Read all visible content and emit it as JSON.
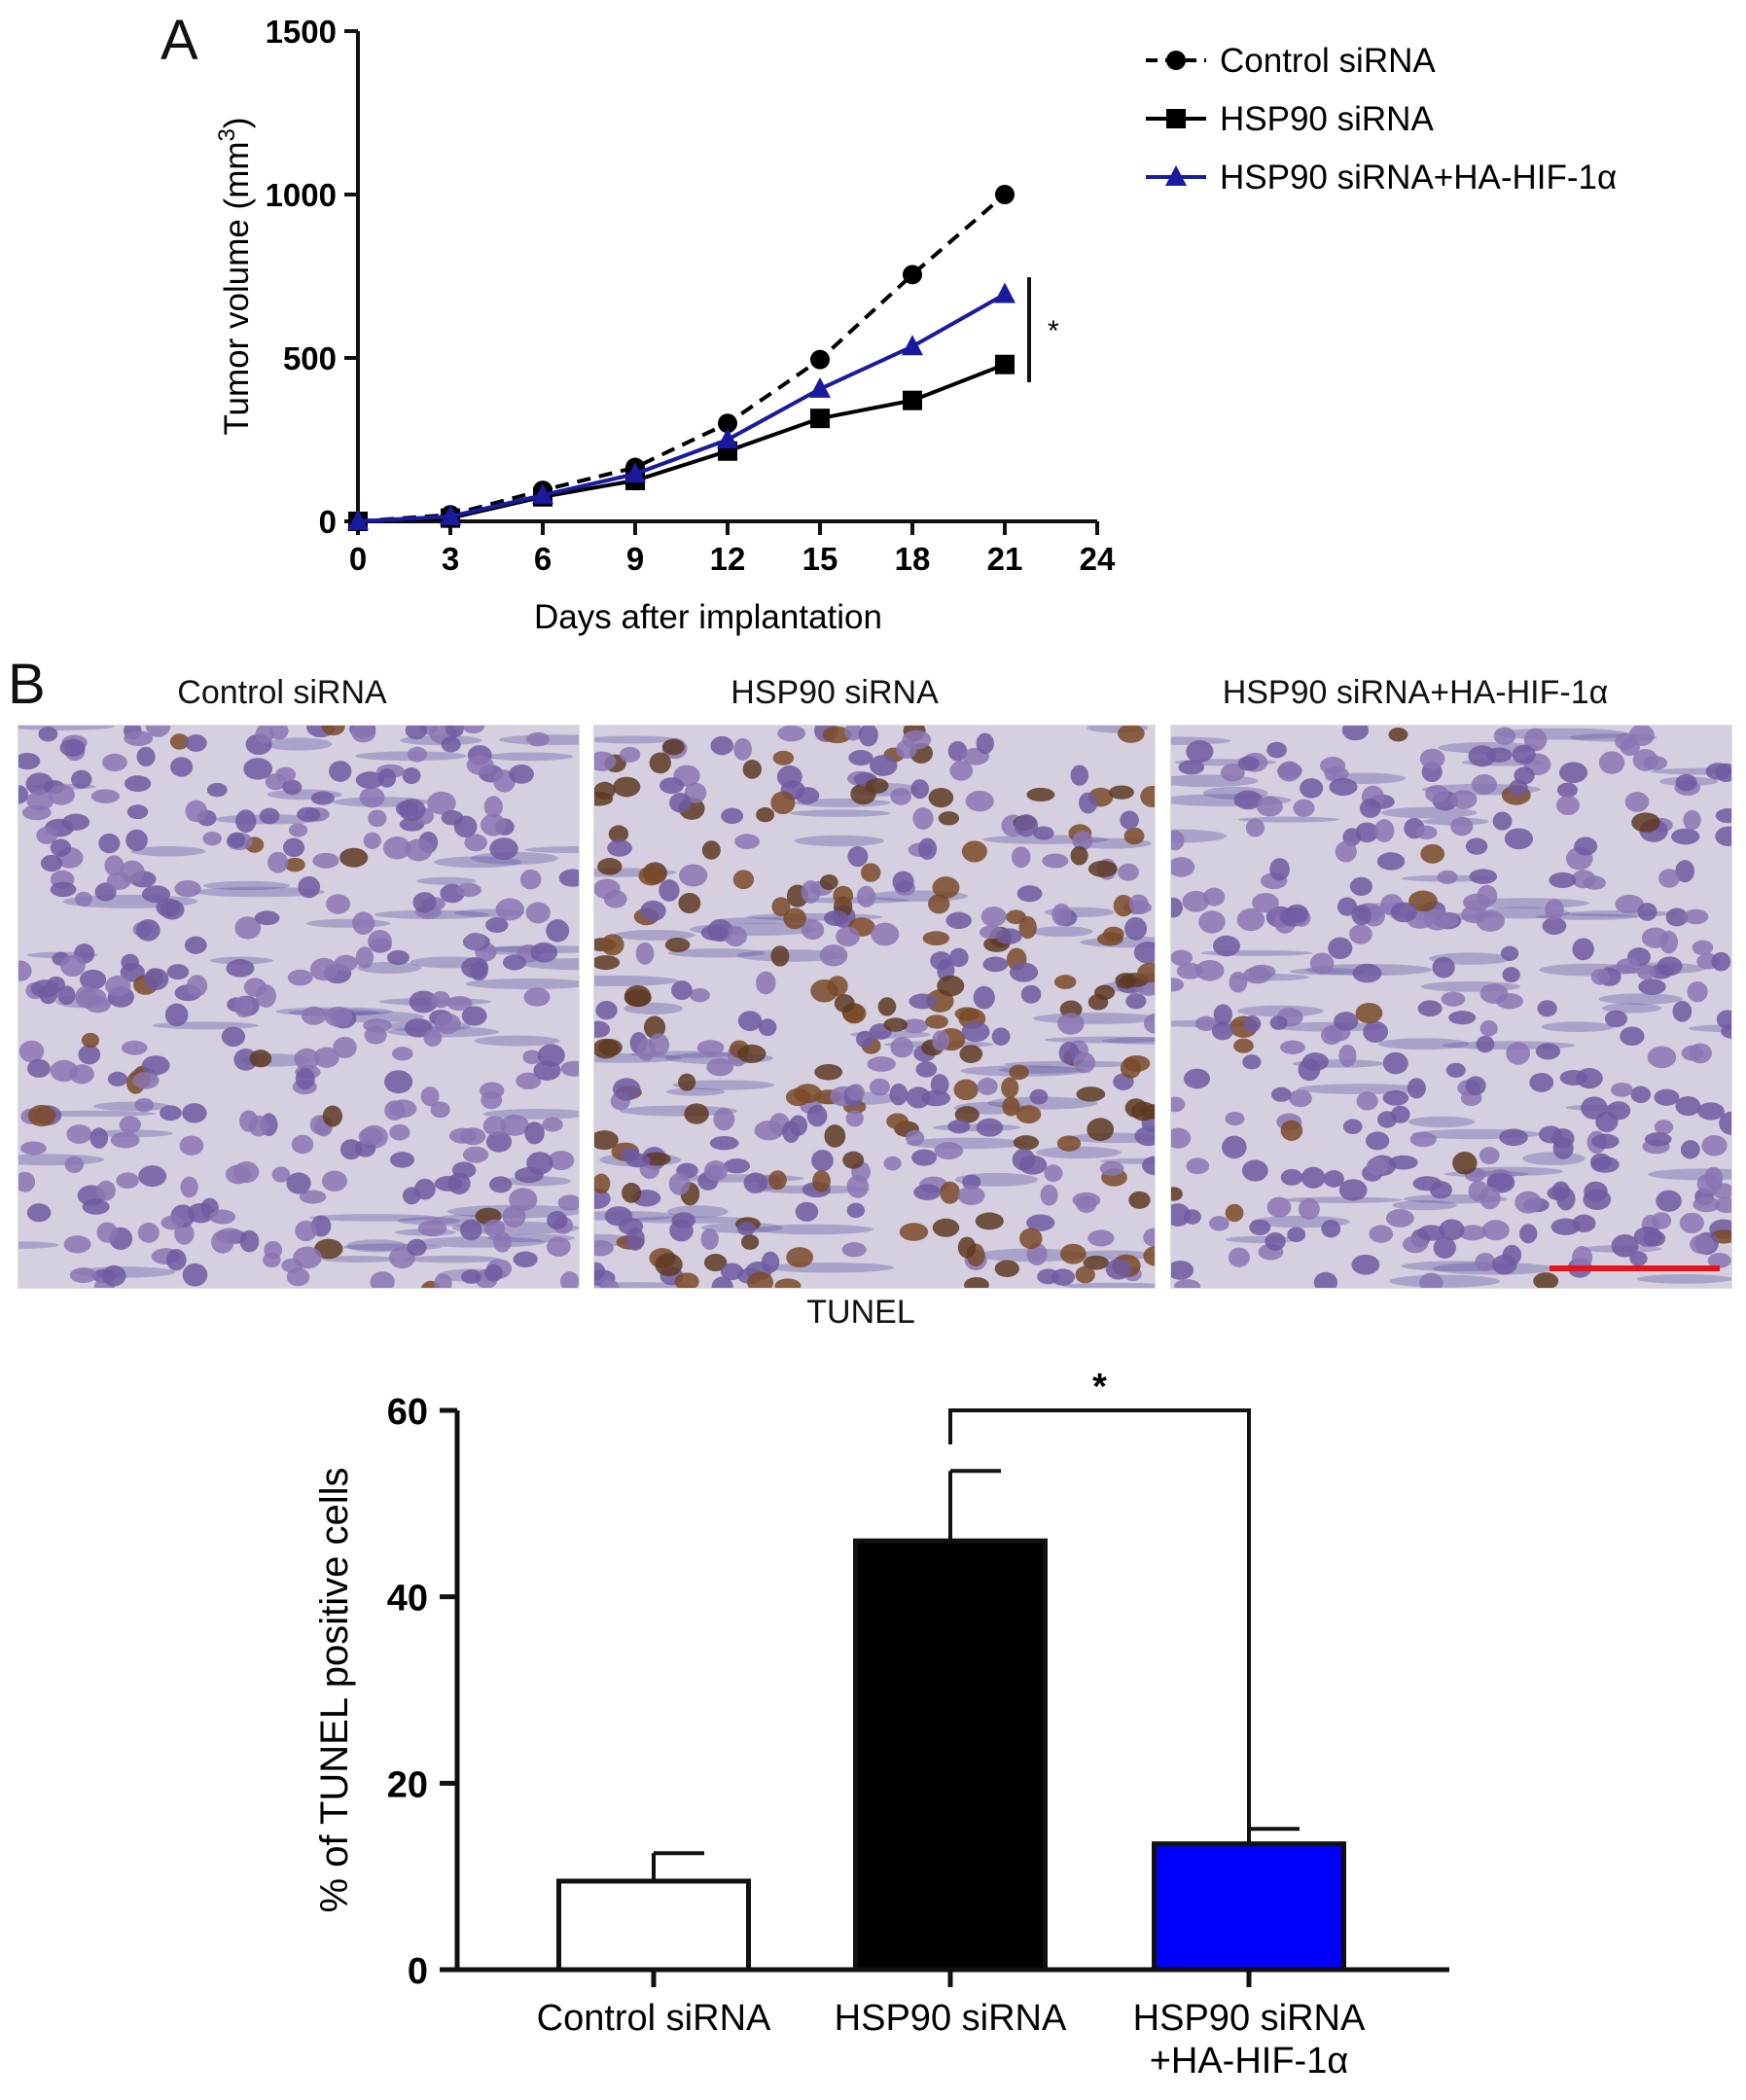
{
  "panel_a": {
    "letter": "A",
    "legend": [
      "Control siRNA",
      "HSP90 siRNA",
      "HSP90 siRNA+HA-HIF-1α"
    ],
    "significance": "*"
  },
  "panel_b": {
    "letter": "B",
    "image_titles": [
      "Control siRNA",
      "HSP90 siRNA",
      "HSP90 siRNA+HA-HIF-1α"
    ],
    "stain_label": "TUNEL",
    "scale_bar_color": "#e8141c",
    "significance": "*"
  },
  "chart_data": [
    {
      "type": "line",
      "xlabel": "Days after implantation",
      "ylabel": "Tumor volume (mm3)",
      "x": [
        0,
        3,
        6,
        9,
        12,
        15,
        18,
        21
      ],
      "xticks": [
        0,
        3,
        6,
        9,
        12,
        15,
        18,
        21,
        24
      ],
      "yticks": [
        0,
        500,
        1000,
        1500
      ],
      "xlim": [
        0,
        24
      ],
      "ylim": [
        0,
        1500
      ],
      "grid": false,
      "legend_position": "top-right",
      "series": [
        {
          "name": "Control siRNA",
          "color": "#000000",
          "marker": "circle",
          "line": "dashed",
          "values": [
            0,
            20,
            95,
            165,
            300,
            495,
            755,
            1000
          ]
        },
        {
          "name": "HSP90 siRNA",
          "color": "#000000",
          "marker": "square",
          "line": "solid",
          "values": [
            0,
            10,
            75,
            125,
            215,
            315,
            370,
            480
          ]
        },
        {
          "name": "HSP90 siRNA+HA-HIF-1α",
          "color": "#1a1a9e",
          "marker": "triangle",
          "line": "solid",
          "values": [
            0,
            15,
            80,
            145,
            250,
            405,
            535,
            695
          ]
        }
      ]
    },
    {
      "type": "bar",
      "ylabel": "% of TUNEL positive cells",
      "categories": [
        [
          "Control siRNA"
        ],
        [
          "HSP90 siRNA"
        ],
        [
          "HSP90 siRNA",
          "+HA-HIF-1α"
        ]
      ],
      "values": [
        9.5,
        46,
        13.5
      ],
      "errors": [
        3,
        7.5,
        1.6
      ],
      "colors": [
        "#ffffff",
        "#000000",
        "#0000ff"
      ],
      "yticks": [
        0,
        20,
        40,
        60
      ],
      "ylim": [
        0,
        60
      ],
      "grid": false
    }
  ]
}
